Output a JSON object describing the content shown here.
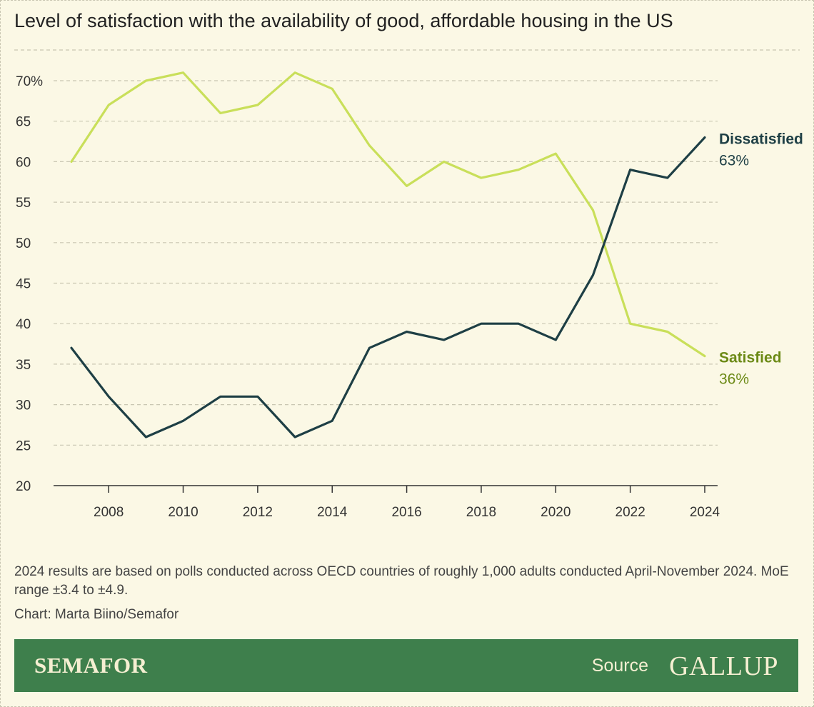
{
  "title": "Level of satisfaction with the availability of good, affordable housing in the US",
  "note": "2024 results are based on polls conducted across OECD countries of roughly 1,000 adults conducted April-November 2024. MoE range ±3.4 to ±4.9.",
  "credit": "Chart: Marta Biino/Semafor",
  "footer": {
    "brand": "SEMAFOR",
    "source_label": "Source",
    "source_name": "GALLUP",
    "background": "#3e7f4c"
  },
  "colors": {
    "background": "#fbf8e5",
    "dissatisfied_line": "#1e3f45",
    "satisfied_line": "#c9df5a",
    "satisfied_label": "#6c8a16",
    "grid": "#c9c6b2"
  },
  "chart_data": {
    "type": "line",
    "title": "Level of satisfaction with the availability of good, affordable housing in the US",
    "x": [
      2007,
      2008,
      2009,
      2010,
      2011,
      2012,
      2013,
      2014,
      2015,
      2016,
      2017,
      2018,
      2019,
      2020,
      2021,
      2022,
      2023,
      2024
    ],
    "xticks": [
      2008,
      2010,
      2012,
      2014,
      2016,
      2018,
      2020,
      2022,
      2024
    ],
    "yticks": [
      20,
      25,
      30,
      35,
      40,
      45,
      50,
      55,
      60,
      65,
      70
    ],
    "ytick_labels": [
      "20",
      "25",
      "30",
      "35",
      "40",
      "45",
      "50",
      "55",
      "60",
      "65",
      "70%"
    ],
    "ylim": [
      20,
      70
    ],
    "grid": true,
    "series": [
      {
        "name": "Dissatisfied",
        "end_label": "63%",
        "color": "#1e3f45",
        "label_color": "#1e3f45",
        "values": [
          37,
          31,
          26,
          28,
          31,
          31,
          26,
          28,
          37,
          39,
          38,
          40,
          40,
          38,
          46,
          59,
          58,
          63
        ]
      },
      {
        "name": "Satisfied",
        "end_label": "36%",
        "color": "#c9df5a",
        "label_color": "#6c8a16",
        "values": [
          60,
          67,
          70,
          71,
          66,
          67,
          71,
          69,
          62,
          57,
          60,
          58,
          59,
          61,
          54,
          40,
          39,
          36
        ]
      }
    ]
  }
}
